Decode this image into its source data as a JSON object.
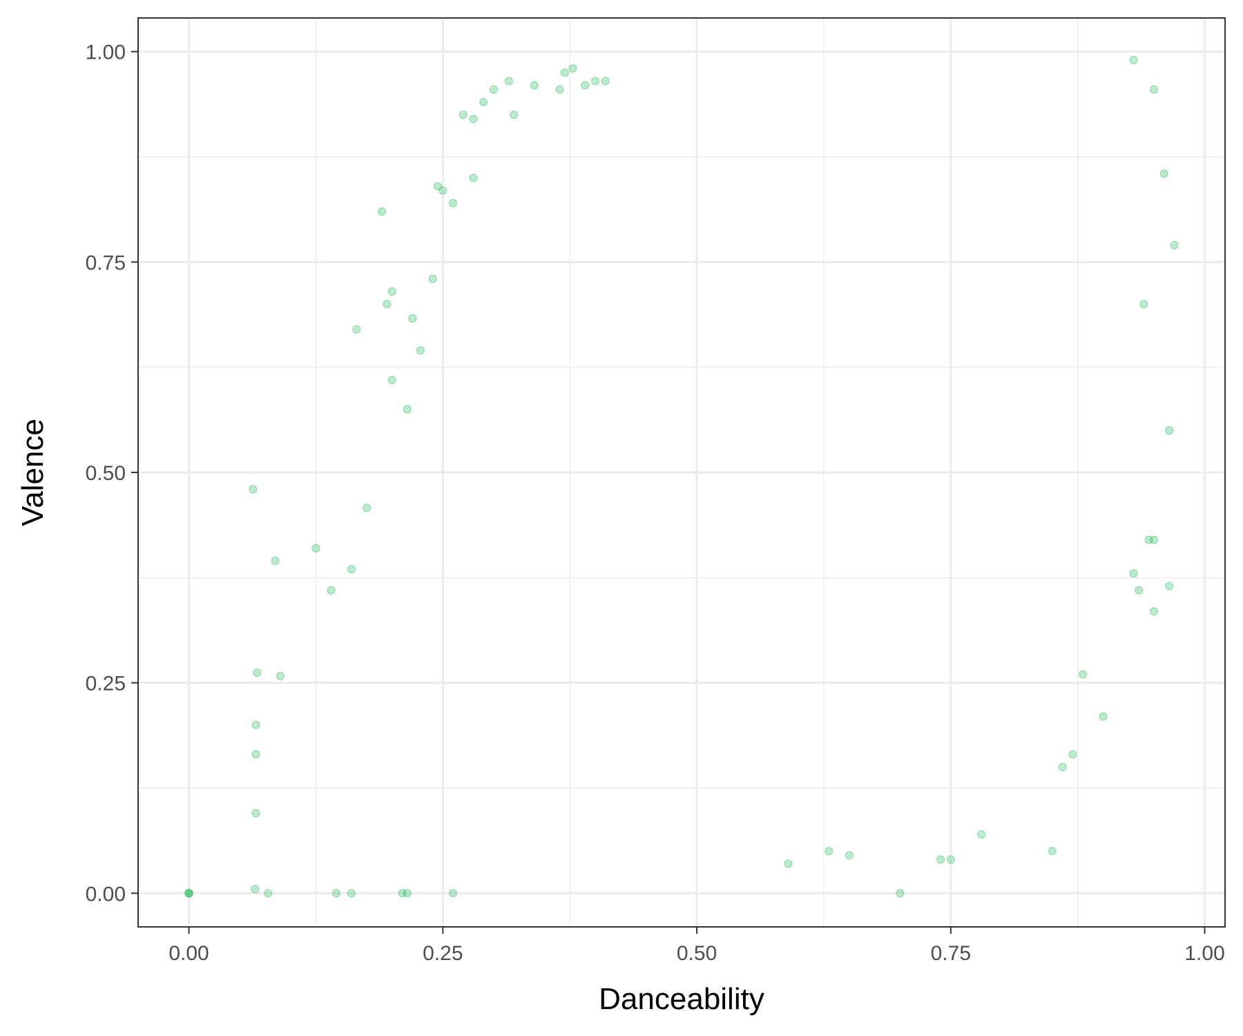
{
  "chart_data": {
    "type": "scatter",
    "title": "",
    "xlabel": "Danceability",
    "ylabel": "Valence",
    "xlim": [
      -0.05,
      1.02
    ],
    "ylim": [
      -0.04,
      1.04
    ],
    "x_ticks": [
      0.0,
      0.25,
      0.5,
      0.75,
      1.0
    ],
    "x_tick_labels": [
      "0.00",
      "0.25",
      "0.50",
      "0.75",
      "1.00"
    ],
    "y_ticks": [
      0.0,
      0.25,
      0.5,
      0.75,
      1.0
    ],
    "y_tick_labels": [
      "0.00",
      "0.25",
      "0.50",
      "0.75",
      "1.00"
    ],
    "grid": true,
    "legend": "none",
    "point_color": "#22BB55",
    "point_opacity": 0.3,
    "points": [
      [
        0.0,
        0.0
      ],
      [
        0.0,
        0.0
      ],
      [
        0.0,
        0.0
      ],
      [
        0.063,
        0.48
      ],
      [
        0.066,
        0.2
      ],
      [
        0.066,
        0.165
      ],
      [
        0.066,
        0.095
      ],
      [
        0.067,
        0.262
      ],
      [
        0.085,
        0.395
      ],
      [
        0.09,
        0.258
      ],
      [
        0.125,
        0.41
      ],
      [
        0.14,
        0.36
      ],
      [
        0.165,
        0.67
      ],
      [
        0.16,
        0.385
      ],
      [
        0.175,
        0.458
      ],
      [
        0.19,
        0.81
      ],
      [
        0.195,
        0.7
      ],
      [
        0.2,
        0.715
      ],
      [
        0.2,
        0.61
      ],
      [
        0.215,
        0.575
      ],
      [
        0.22,
        0.683
      ],
      [
        0.228,
        0.645
      ],
      [
        0.24,
        0.73
      ],
      [
        0.245,
        0.84
      ],
      [
        0.25,
        0.835
      ],
      [
        0.26,
        0.82
      ],
      [
        0.27,
        0.925
      ],
      [
        0.28,
        0.85
      ],
      [
        0.28,
        0.92
      ],
      [
        0.29,
        0.94
      ],
      [
        0.3,
        0.955
      ],
      [
        0.315,
        0.965
      ],
      [
        0.32,
        0.925
      ],
      [
        0.34,
        0.96
      ],
      [
        0.365,
        0.955
      ],
      [
        0.37,
        0.975
      ],
      [
        0.378,
        0.98
      ],
      [
        0.39,
        0.96
      ],
      [
        0.4,
        0.965
      ],
      [
        0.41,
        0.965
      ],
      [
        0.93,
        0.99
      ],
      [
        0.96,
        0.855
      ],
      [
        0.97,
        0.77
      ],
      [
        0.95,
        0.955
      ],
      [
        0.94,
        0.7
      ],
      [
        0.965,
        0.55
      ],
      [
        0.945,
        0.42
      ],
      [
        0.95,
        0.42
      ],
      [
        0.93,
        0.38
      ],
      [
        0.935,
        0.36
      ],
      [
        0.965,
        0.365
      ],
      [
        0.95,
        0.335
      ],
      [
        0.9,
        0.21
      ],
      [
        0.88,
        0.26
      ],
      [
        0.87,
        0.165
      ],
      [
        0.86,
        0.15
      ],
      [
        0.85,
        0.05
      ],
      [
        0.78,
        0.07
      ],
      [
        0.75,
        0.04
      ],
      [
        0.74,
        0.04
      ],
      [
        0.7,
        0.0
      ],
      [
        0.59,
        0.035
      ],
      [
        0.63,
        0.05
      ],
      [
        0.65,
        0.045
      ],
      [
        0.26,
        0.0
      ],
      [
        0.16,
        0.0
      ],
      [
        0.145,
        0.0
      ],
      [
        0.21,
        0.0
      ],
      [
        0.215,
        0.0
      ],
      [
        0.078,
        0.0
      ],
      [
        0.065,
        0.005
      ]
    ]
  }
}
